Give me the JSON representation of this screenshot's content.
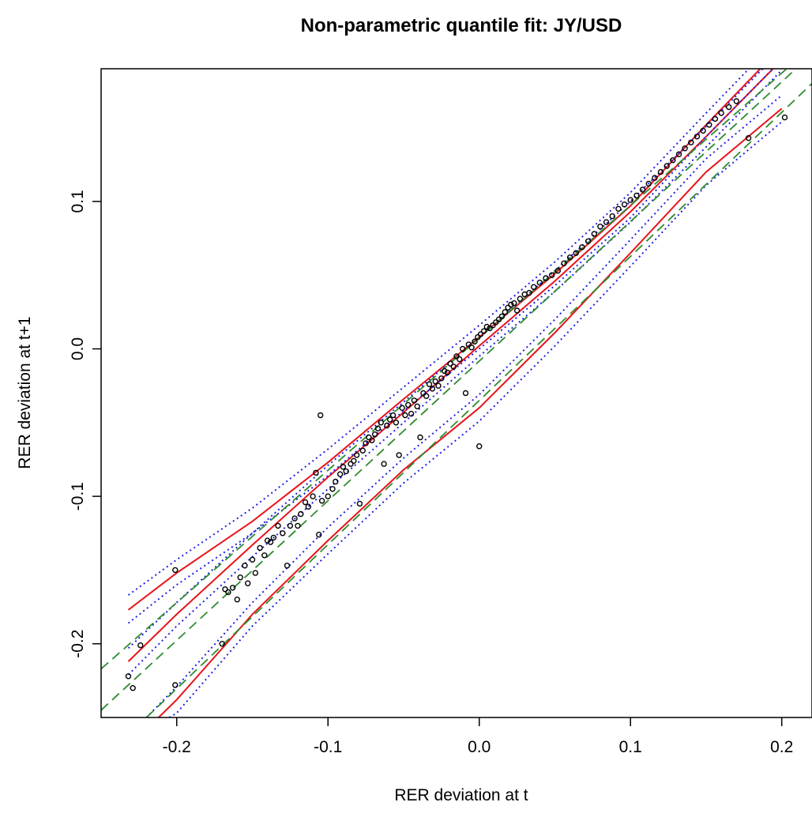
{
  "chart_data": {
    "type": "scatter",
    "title": "Non-parametric quantile fit: JY/USD",
    "xlabel": "RER deviation at t",
    "ylabel": "RER deviation at t+1",
    "xlim": [
      -0.25,
      0.22
    ],
    "ylim": [
      -0.25,
      0.19
    ],
    "xticks": [
      -0.2,
      -0.1,
      0.0,
      0.1,
      0.2
    ],
    "xtick_labels": [
      "-0.2",
      "-0.1",
      "0.0",
      "0.1",
      "0.2"
    ],
    "yticks": [
      -0.2,
      -0.1,
      0.0,
      0.1
    ],
    "ytick_labels": [
      "-0.2",
      "-0.1",
      "0.0",
      "0.1"
    ],
    "grid": false,
    "colors": {
      "points": "#000000",
      "quantile_fit": "#e8141b",
      "confidence_band": "#1f1fe6",
      "linear_quantile": "#2e8b2e"
    },
    "series": [
      {
        "style": "points",
        "x": [
          -0.232,
          -0.229,
          -0.224,
          -0.201,
          -0.201,
          -0.17,
          -0.168,
          -0.166,
          -0.163,
          -0.16,
          -0.158,
          -0.155,
          -0.153,
          -0.15,
          -0.148,
          -0.145,
          -0.142,
          -0.14,
          -0.138,
          -0.136,
          -0.133,
          -0.13,
          -0.127,
          -0.125,
          -0.122,
          -0.12,
          -0.118,
          -0.115,
          -0.113,
          -0.11,
          -0.108,
          -0.106,
          -0.105,
          -0.104,
          -0.1,
          -0.097,
          -0.095,
          -0.092,
          -0.09,
          -0.088,
          -0.085,
          -0.083,
          -0.081,
          -0.079,
          -0.077,
          -0.075,
          -0.073,
          -0.071,
          -0.069,
          -0.067,
          -0.065,
          -0.063,
          -0.061,
          -0.059,
          -0.057,
          -0.055,
          -0.053,
          -0.051,
          -0.049,
          -0.047,
          -0.045,
          -0.043,
          -0.041,
          -0.039,
          -0.037,
          -0.035,
          -0.033,
          -0.031,
          -0.029,
          -0.027,
          -0.025,
          -0.023,
          -0.021,
          -0.019,
          -0.017,
          -0.015,
          -0.013,
          -0.011,
          -0.009,
          -0.007,
          -0.005,
          -0.003,
          -0.001,
          0.0,
          0.001,
          0.003,
          0.005,
          0.007,
          0.009,
          0.011,
          0.013,
          0.015,
          0.017,
          0.019,
          0.021,
          0.023,
          0.025,
          0.027,
          0.03,
          0.033,
          0.036,
          0.04,
          0.044,
          0.048,
          0.052,
          0.056,
          0.06,
          0.064,
          0.068,
          0.072,
          0.076,
          0.08,
          0.084,
          0.088,
          0.092,
          0.096,
          0.1,
          0.104,
          0.108,
          0.112,
          0.116,
          0.12,
          0.124,
          0.128,
          0.132,
          0.136,
          0.14,
          0.144,
          0.148,
          0.152,
          0.156,
          0.16,
          0.165,
          0.17,
          0.178,
          0.202
        ],
        "y": [
          -0.222,
          -0.23,
          -0.201,
          -0.15,
          -0.228,
          -0.2,
          -0.163,
          -0.165,
          -0.162,
          -0.17,
          -0.155,
          -0.147,
          -0.159,
          -0.143,
          -0.152,
          -0.135,
          -0.14,
          -0.13,
          -0.131,
          -0.128,
          -0.12,
          -0.125,
          -0.147,
          -0.12,
          -0.115,
          -0.12,
          -0.112,
          -0.104,
          -0.107,
          -0.1,
          -0.084,
          -0.126,
          -0.045,
          -0.103,
          -0.1,
          -0.095,
          -0.09,
          -0.085,
          -0.08,
          -0.083,
          -0.078,
          -0.076,
          -0.072,
          -0.105,
          -0.069,
          -0.064,
          -0.06,
          -0.062,
          -0.058,
          -0.054,
          -0.05,
          -0.078,
          -0.052,
          -0.048,
          -0.045,
          -0.05,
          -0.072,
          -0.04,
          -0.045,
          -0.038,
          -0.044,
          -0.035,
          -0.039,
          -0.06,
          -0.03,
          -0.032,
          -0.024,
          -0.027,
          -0.022,
          -0.025,
          -0.02,
          -0.015,
          -0.016,
          -0.01,
          -0.012,
          -0.005,
          -0.007,
          0.0,
          -0.03,
          0.003,
          0.001,
          0.005,
          0.008,
          -0.066,
          0.01,
          0.012,
          0.015,
          0.014,
          0.016,
          0.018,
          0.02,
          0.022,
          0.025,
          0.028,
          0.03,
          0.031,
          0.026,
          0.034,
          0.037,
          0.038,
          0.042,
          0.045,
          0.048,
          0.05,
          0.053,
          0.058,
          0.062,
          0.065,
          0.069,
          0.073,
          0.078,
          0.083,
          0.086,
          0.09,
          0.095,
          0.098,
          0.101,
          0.104,
          0.108,
          0.112,
          0.116,
          0.12,
          0.124,
          0.128,
          0.132,
          0.136,
          0.14,
          0.144,
          0.148,
          0.152,
          0.156,
          0.16,
          0.164,
          0.168,
          0.143,
          0.157
        ]
      },
      {
        "style": "solid",
        "x": [
          -0.232,
          -0.2,
          -0.15,
          -0.1,
          -0.05,
          0.0,
          0.05,
          0.1,
          0.15,
          0.2
        ],
        "y": [
          -0.177,
          -0.152,
          -0.117,
          -0.077,
          -0.034,
          0.008,
          0.051,
          0.097,
          0.152,
          0.205
        ]
      },
      {
        "style": "solid",
        "x": [
          -0.232,
          -0.2,
          -0.15,
          -0.1,
          -0.05,
          0.0,
          0.05,
          0.1,
          0.15,
          0.2
        ],
        "y": [
          -0.212,
          -0.18,
          -0.133,
          -0.087,
          -0.043,
          0.002,
          0.046,
          0.093,
          0.144,
          0.196
        ]
      },
      {
        "style": "solid",
        "x": [
          -0.212,
          -0.2,
          -0.15,
          -0.1,
          -0.05,
          0.0,
          0.05,
          0.1,
          0.15,
          0.2
        ],
        "y": [
          -0.25,
          -0.238,
          -0.18,
          -0.13,
          -0.082,
          -0.04,
          0.011,
          0.065,
          0.12,
          0.163
        ]
      },
      {
        "style": "dotted",
        "x": [
          -0.232,
          -0.2,
          -0.15,
          -0.1,
          -0.05,
          0.0,
          0.05,
          0.1,
          0.15,
          0.2
        ],
        "y": [
          -0.167,
          -0.143,
          -0.108,
          -0.068,
          -0.026,
          0.016,
          0.059,
          0.106,
          0.16,
          0.213
        ]
      },
      {
        "style": "dotted",
        "x": [
          -0.232,
          -0.2,
          -0.15,
          -0.1,
          -0.05,
          0.0,
          0.05,
          0.1,
          0.15,
          0.2
        ],
        "y": [
          -0.186,
          -0.16,
          -0.125,
          -0.086,
          -0.042,
          0.0,
          0.043,
          0.089,
          0.144,
          0.196
        ]
      },
      {
        "style": "dotted",
        "x": [
          -0.232,
          -0.2,
          -0.15,
          -0.1,
          -0.05,
          0.0,
          0.05,
          0.1,
          0.15,
          0.2
        ],
        "y": [
          -0.203,
          -0.172,
          -0.125,
          -0.079,
          -0.036,
          0.008,
          0.053,
          0.1,
          0.151,
          0.203
        ]
      },
      {
        "style": "dotted",
        "x": [
          -0.232,
          -0.2,
          -0.15,
          -0.1,
          -0.05,
          0.0,
          0.05,
          0.1,
          0.15,
          0.2
        ],
        "y": [
          -0.221,
          -0.188,
          -0.141,
          -0.095,
          -0.05,
          -0.005,
          0.039,
          0.086,
          0.137,
          0.189
        ]
      },
      {
        "style": "dotted",
        "x": [
          -0.22,
          -0.2,
          -0.15,
          -0.1,
          -0.05,
          0.0,
          0.05,
          0.1,
          0.15,
          0.2
        ],
        "y": [
          -0.25,
          -0.229,
          -0.172,
          -0.121,
          -0.074,
          -0.031,
          0.02,
          0.074,
          0.129,
          0.172
        ]
      },
      {
        "style": "dotted",
        "x": [
          -0.205,
          -0.2,
          -0.15,
          -0.1,
          -0.05,
          0.0,
          0.05,
          0.1,
          0.15,
          0.2
        ],
        "y": [
          -0.25,
          -0.247,
          -0.188,
          -0.139,
          -0.091,
          -0.049,
          0.002,
          0.056,
          0.111,
          0.154
        ]
      },
      {
        "style": "dashed",
        "x": [
          -0.25,
          0.22
        ],
        "y": [
          -0.217,
          0.205
        ]
      },
      {
        "style": "dashed",
        "x": [
          -0.25,
          0.22
        ],
        "y": [
          -0.245,
          0.2
        ]
      },
      {
        "style": "dashed",
        "x": [
          -0.22,
          0.22
        ],
        "y": [
          -0.25,
          0.18
        ]
      }
    ]
  }
}
